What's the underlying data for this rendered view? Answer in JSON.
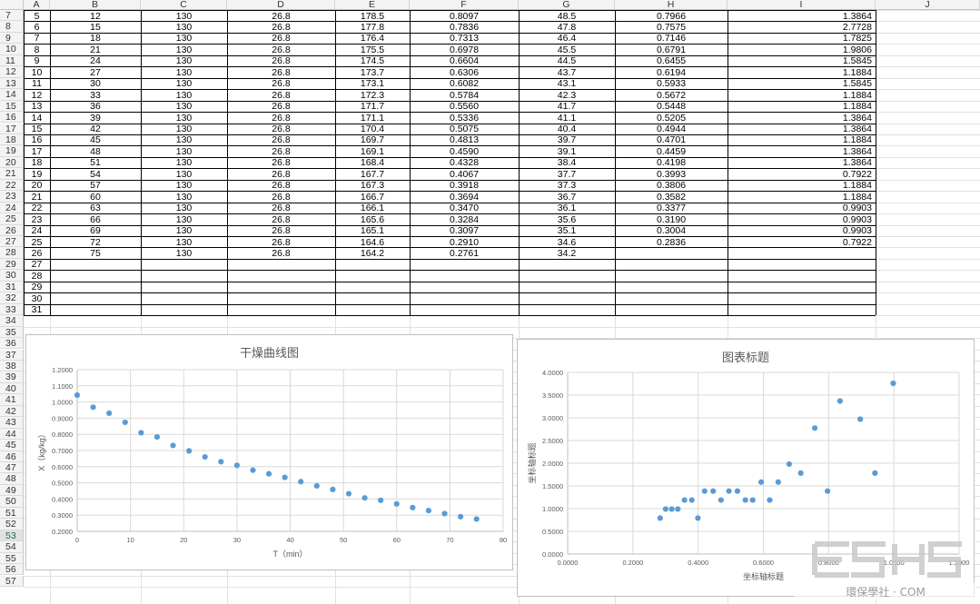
{
  "columns": [
    "A",
    "B",
    "C",
    "D",
    "E",
    "F",
    "G",
    "H",
    "I",
    "J"
  ],
  "row_numbers": [
    7,
    8,
    9,
    10,
    11,
    12,
    13,
    14,
    15,
    16,
    17,
    18,
    19,
    20,
    21,
    22,
    23,
    24,
    25,
    26,
    27,
    28,
    29,
    30,
    31,
    32,
    33,
    34,
    35,
    36,
    37,
    38,
    39,
    40,
    41,
    42,
    43,
    44,
    45,
    46,
    47,
    48,
    49,
    50,
    51,
    52,
    53,
    54,
    55,
    56,
    57
  ],
  "active_row": 53,
  "table_rows": [
    [
      "5",
      "12",
      "130",
      "26.8",
      "178.5",
      "0.8097",
      "48.5",
      "0.7966",
      "1.3864"
    ],
    [
      "6",
      "15",
      "130",
      "26.8",
      "177.8",
      "0.7836",
      "47.8",
      "0.7575",
      "2.7728"
    ],
    [
      "7",
      "18",
      "130",
      "26.8",
      "176.4",
      "0.7313",
      "46.4",
      "0.7146",
      "1.7825"
    ],
    [
      "8",
      "21",
      "130",
      "26.8",
      "175.5",
      "0.6978",
      "45.5",
      "0.6791",
      "1.9806"
    ],
    [
      "9",
      "24",
      "130",
      "26.8",
      "174.5",
      "0.6604",
      "44.5",
      "0.6455",
      "1.5845"
    ],
    [
      "10",
      "27",
      "130",
      "26.8",
      "173.7",
      "0.6306",
      "43.7",
      "0.6194",
      "1.1884"
    ],
    [
      "11",
      "30",
      "130",
      "26.8",
      "173.1",
      "0.6082",
      "43.1",
      "0.5933",
      "1.5845"
    ],
    [
      "12",
      "33",
      "130",
      "26.8",
      "172.3",
      "0.5784",
      "42.3",
      "0.5672",
      "1.1884"
    ],
    [
      "13",
      "36",
      "130",
      "26.8",
      "171.7",
      "0.5560",
      "41.7",
      "0.5448",
      "1.1884"
    ],
    [
      "14",
      "39",
      "130",
      "26.8",
      "171.1",
      "0.5336",
      "41.1",
      "0.5205",
      "1.3864"
    ],
    [
      "15",
      "42",
      "130",
      "26.8",
      "170.4",
      "0.5075",
      "40.4",
      "0.4944",
      "1.3864"
    ],
    [
      "16",
      "45",
      "130",
      "26.8",
      "169.7",
      "0.4813",
      "39.7",
      "0.4701",
      "1.1884"
    ],
    [
      "17",
      "48",
      "130",
      "26.8",
      "169.1",
      "0.4590",
      "39.1",
      "0.4459",
      "1.3864"
    ],
    [
      "18",
      "51",
      "130",
      "26.8",
      "168.4",
      "0.4328",
      "38.4",
      "0.4198",
      "1.3864"
    ],
    [
      "19",
      "54",
      "130",
      "26.8",
      "167.7",
      "0.4067",
      "37.7",
      "0.3993",
      "0.7922"
    ],
    [
      "20",
      "57",
      "130",
      "26.8",
      "167.3",
      "0.3918",
      "37.3",
      "0.3806",
      "1.1884"
    ],
    [
      "21",
      "60",
      "130",
      "26.8",
      "166.7",
      "0.3694",
      "36.7",
      "0.3582",
      "1.1884"
    ],
    [
      "22",
      "63",
      "130",
      "26.8",
      "166.1",
      "0.3470",
      "36.1",
      "0.3377",
      "0.9903"
    ],
    [
      "23",
      "66",
      "130",
      "26.8",
      "165.6",
      "0.3284",
      "35.6",
      "0.3190",
      "0.9903"
    ],
    [
      "24",
      "69",
      "130",
      "26.8",
      "165.1",
      "0.3097",
      "35.1",
      "0.3004",
      "0.9903"
    ],
    [
      "25",
      "72",
      "130",
      "26.8",
      "164.6",
      "0.2910",
      "34.6",
      "0.2836",
      "0.7922"
    ],
    [
      "26",
      "75",
      "130",
      "26.8",
      "164.2",
      "0.2761",
      "34.2",
      "",
      ""
    ],
    [
      "27",
      "",
      "",
      "",
      "",
      "",
      "",
      "",
      ""
    ],
    [
      "28",
      "",
      "",
      "",
      "",
      "",
      "",
      "",
      ""
    ],
    [
      "29",
      "",
      "",
      "",
      "",
      "",
      "",
      "",
      ""
    ],
    [
      "30",
      "",
      "",
      "",
      "",
      "",
      "",
      "",
      ""
    ],
    [
      "31",
      "",
      "",
      "",
      "",
      "",
      "",
      "",
      ""
    ]
  ],
  "chart_data": [
    {
      "type": "scatter",
      "title": "干燥曲线图",
      "xlabel": "T（min）",
      "ylabel": "X（kg/kg）",
      "xlim": [
        0,
        80
      ],
      "ylim": [
        0.2,
        1.2
      ],
      "x_ticks": [
        "0",
        "10",
        "20",
        "30",
        "40",
        "50",
        "60",
        "70",
        "80"
      ],
      "y_ticks": [
        "0.2000",
        "0.3000",
        "0.4000",
        "0.5000",
        "0.6000",
        "0.7000",
        "0.8000",
        "0.9000",
        "1.0000",
        "1.1000",
        "1.2000"
      ],
      "grid": true,
      "color": "#5b9bd5",
      "points": [
        [
          0,
          1.0427
        ],
        [
          3,
          0.968
        ],
        [
          6,
          0.9306
        ],
        [
          9,
          0.8746
        ],
        [
          12,
          0.8097
        ],
        [
          15,
          0.7836
        ],
        [
          18,
          0.7313
        ],
        [
          21,
          0.6978
        ],
        [
          24,
          0.6604
        ],
        [
          27,
          0.6306
        ],
        [
          30,
          0.6082
        ],
        [
          33,
          0.5784
        ],
        [
          36,
          0.556
        ],
        [
          39,
          0.5336
        ],
        [
          42,
          0.5075
        ],
        [
          45,
          0.4813
        ],
        [
          48,
          0.459
        ],
        [
          51,
          0.4328
        ],
        [
          54,
          0.4067
        ],
        [
          57,
          0.3918
        ],
        [
          60,
          0.3694
        ],
        [
          63,
          0.347
        ],
        [
          66,
          0.3284
        ],
        [
          69,
          0.3097
        ],
        [
          72,
          0.291
        ],
        [
          75,
          0.2761
        ]
      ]
    },
    {
      "type": "scatter",
      "title": "图表标题",
      "xlabel": "坐标轴标题",
      "ylabel": "坐标轴标题",
      "xlim": [
        0,
        1.2
      ],
      "ylim": [
        0,
        4
      ],
      "x_ticks": [
        "0.0000",
        "0.2000",
        "0.4000",
        "0.6000",
        "0.8000",
        "1.0000",
        "1.2000"
      ],
      "y_ticks": [
        "0.0000",
        "0.5000",
        "1.0000",
        "1.5000",
        "2.0000",
        "2.5000",
        "3.0000",
        "3.5000",
        "4.0000"
      ],
      "grid": true,
      "color": "#5b9bd5",
      "points": [
        [
          0.2836,
          0.7922
        ],
        [
          0.3004,
          0.9903
        ],
        [
          0.319,
          0.9903
        ],
        [
          0.3377,
          0.9903
        ],
        [
          0.3582,
          1.1884
        ],
        [
          0.3806,
          1.1884
        ],
        [
          0.3993,
          0.7922
        ],
        [
          0.4198,
          1.3864
        ],
        [
          0.4459,
          1.3864
        ],
        [
          0.4701,
          1.1884
        ],
        [
          0.4944,
          1.3864
        ],
        [
          0.5205,
          1.3864
        ],
        [
          0.5448,
          1.1884
        ],
        [
          0.5672,
          1.1884
        ],
        [
          0.5933,
          1.5845
        ],
        [
          0.6194,
          1.1884
        ],
        [
          0.6455,
          1.5845
        ],
        [
          0.6791,
          1.9806
        ],
        [
          0.7146,
          1.7825
        ],
        [
          0.7575,
          2.7728
        ],
        [
          0.7966,
          1.3864
        ],
        [
          0.835,
          3.37
        ],
        [
          0.897,
          2.97
        ],
        [
          0.942,
          1.7825
        ],
        [
          0.998,
          3.76
        ]
      ]
    }
  ],
  "watermark": {
    "logo": "ESHS",
    "caption": "環保學社 · COM"
  }
}
